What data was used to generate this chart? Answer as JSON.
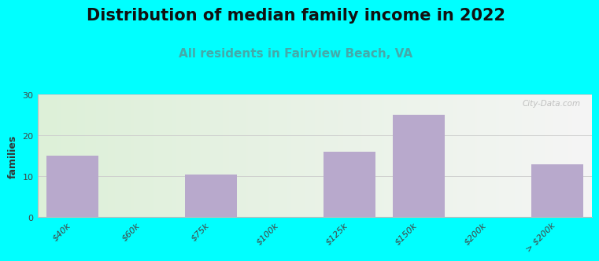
{
  "title": "Distribution of median family income in 2022",
  "subtitle": "All residents in Fairview Beach, VA",
  "ylabel": "families",
  "categories": [
    "$40k",
    "$60k",
    "$75k",
    "$100k",
    "$125k",
    "$150k",
    "$200k",
    "> $200k"
  ],
  "values": [
    15,
    0,
    10.5,
    0,
    16,
    25,
    0,
    13
  ],
  "bar_color": "#b8a9cc",
  "background_color": "#00FFFF",
  "plot_bg_left": "#ddf0d8",
  "plot_bg_right": "#f5f5f5",
  "ylim": [
    0,
    30
  ],
  "yticks": [
    0,
    10,
    20,
    30
  ],
  "grid_color": "#cccccc",
  "title_fontsize": 15,
  "subtitle_fontsize": 11,
  "subtitle_color": "#44AAAA",
  "ylabel_fontsize": 9,
  "tick_fontsize": 8,
  "watermark": "City-Data.com",
  "bar_width": 0.75
}
